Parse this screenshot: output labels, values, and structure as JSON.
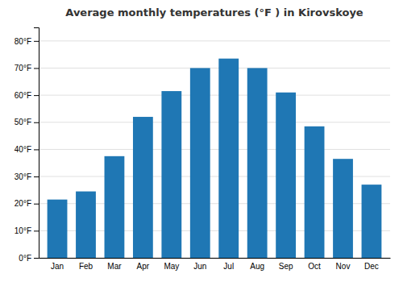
{
  "chart_data": {
    "type": "bar",
    "title": "Average monthly temperatures (°F ) in Kirovskoye",
    "categories": [
      "Jan",
      "Feb",
      "Mar",
      "Apr",
      "May",
      "Jun",
      "Jul",
      "Aug",
      "Sep",
      "Oct",
      "Nov",
      "Dec"
    ],
    "values": [
      21.5,
      24.5,
      37.5,
      52.0,
      61.5,
      70.0,
      73.5,
      70.0,
      61.0,
      48.5,
      36.5,
      27.0
    ],
    "ylim": [
      0,
      85
    ],
    "yticks": [
      {
        "value": 0,
        "label": "0°F"
      },
      {
        "value": 10,
        "label": "10°F"
      },
      {
        "value": 20,
        "label": "20°F"
      },
      {
        "value": 30,
        "label": "30°F"
      },
      {
        "value": 40,
        "label": "40°F"
      },
      {
        "value": 50,
        "label": "50°F"
      },
      {
        "value": 60,
        "label": "60°F"
      },
      {
        "value": 70,
        "label": "70°F"
      },
      {
        "value": 80,
        "label": "80°F"
      }
    ],
    "grid": true
  }
}
